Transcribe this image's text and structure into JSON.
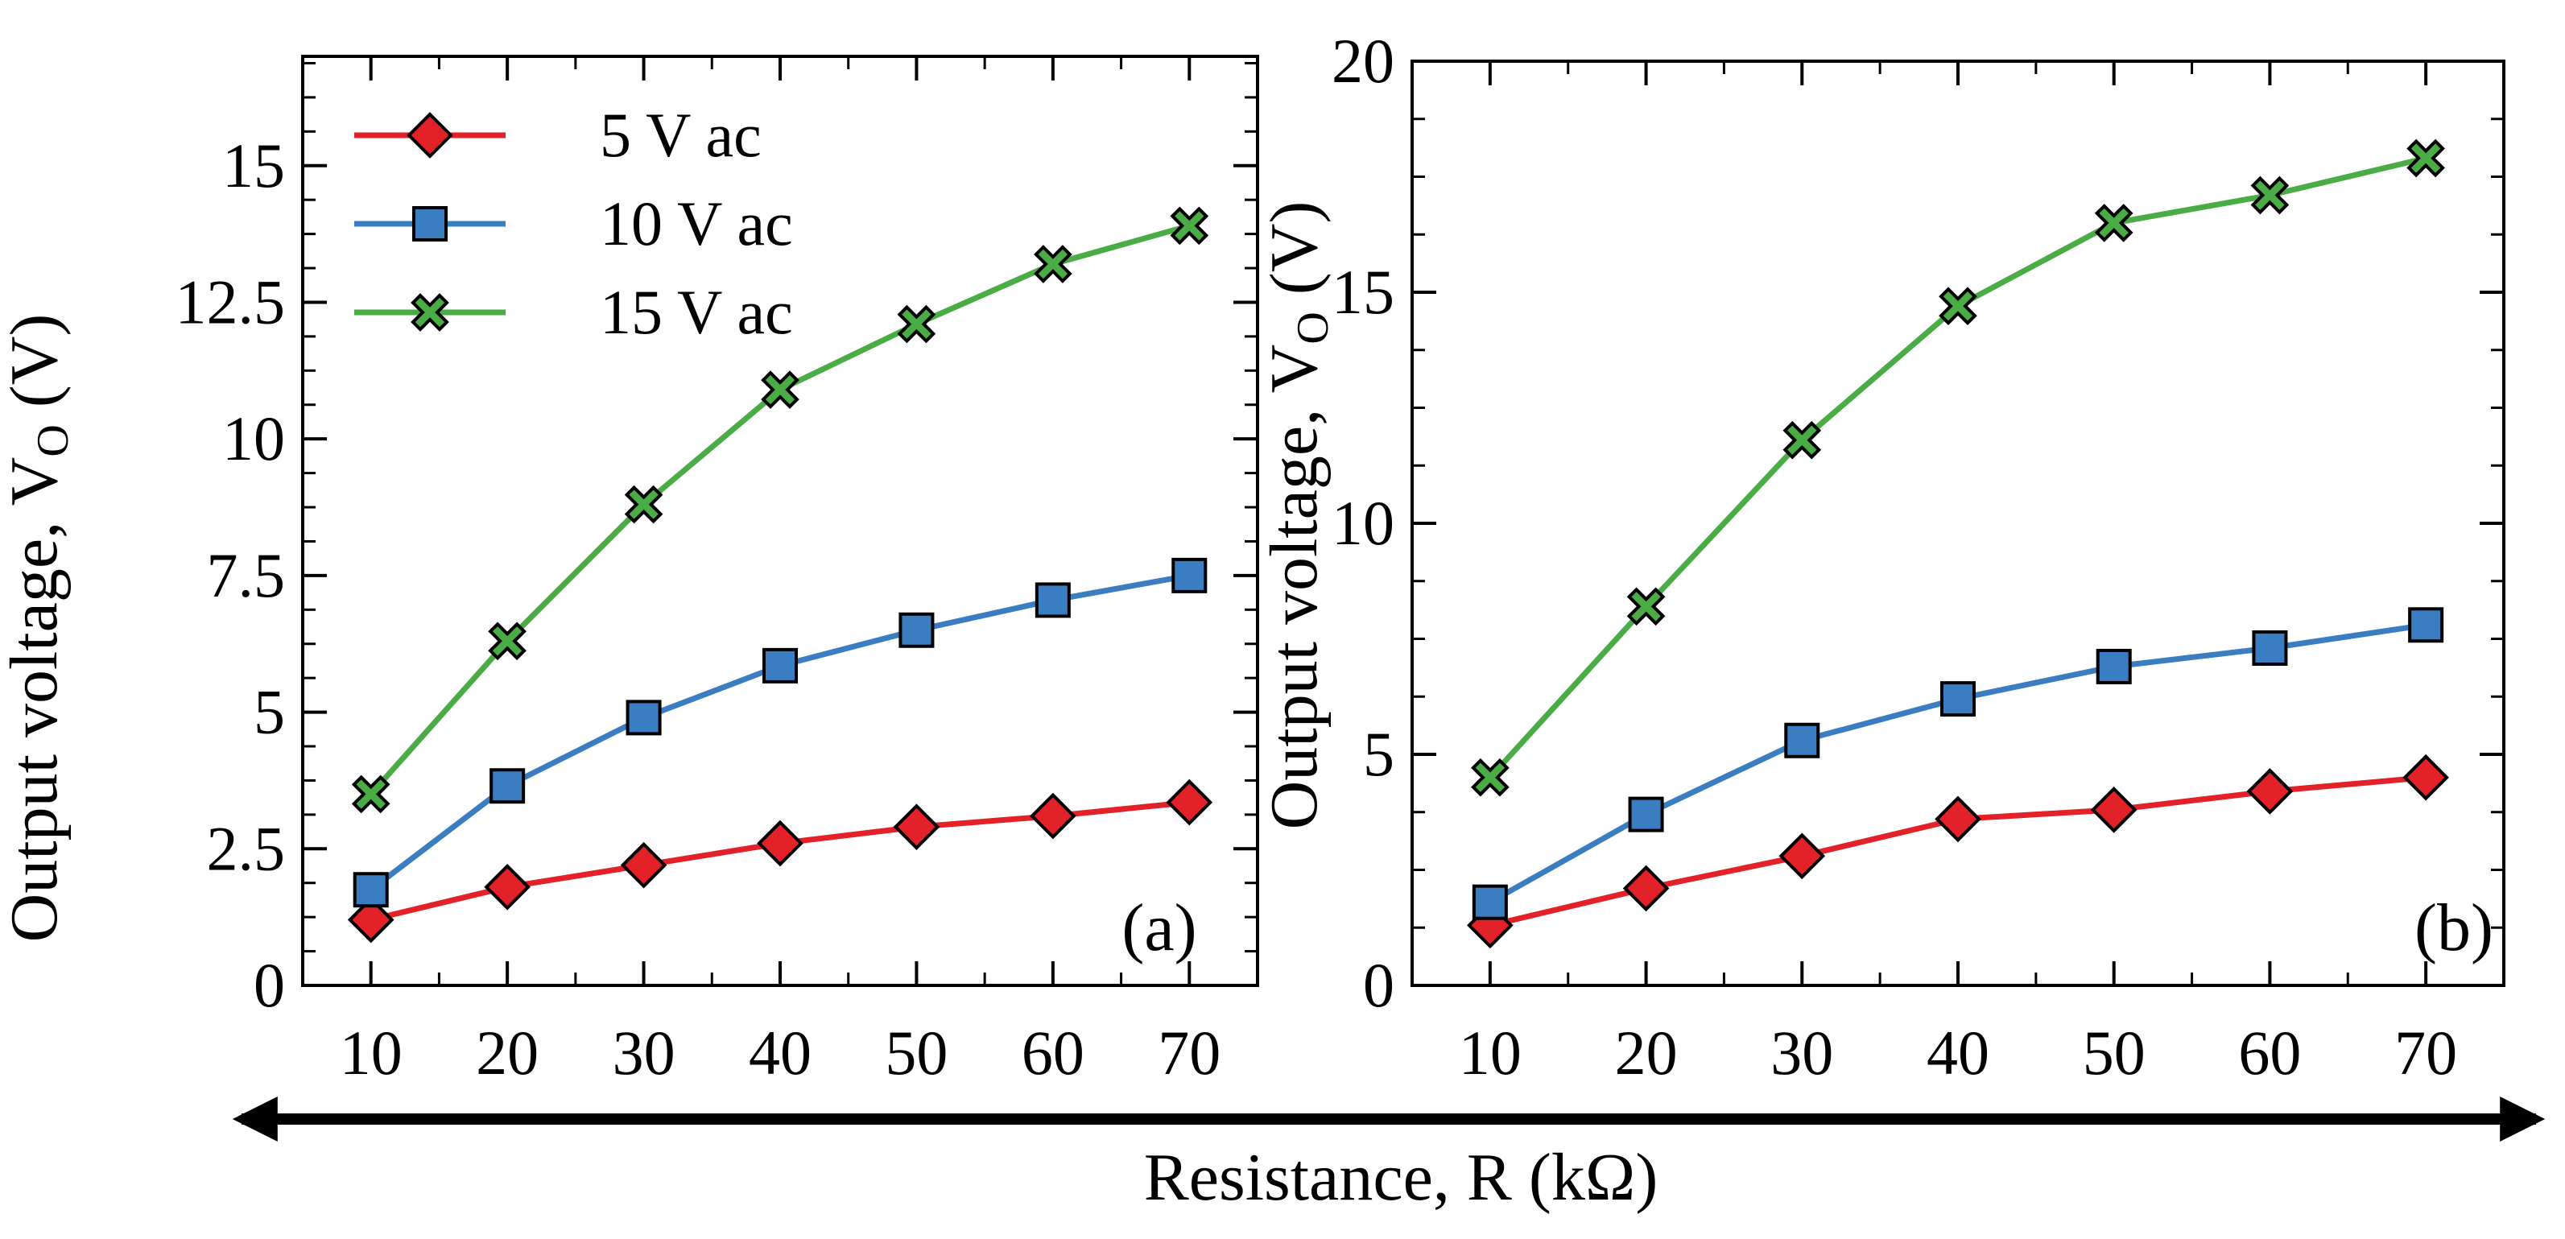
{
  "figure": {
    "x_axis_title": "Resistance, R (kΩ)"
  },
  "colors": {
    "series": [
      "#e32128",
      "#3a7dc0",
      "#4aac45"
    ],
    "axes": "#000000",
    "background": "#ffffff"
  },
  "chart_data": [
    {
      "type": "line",
      "panel_label": "(a)",
      "ylabel_main": "Output voltage,  V",
      "ylabel_sub": "O",
      "ylabel_unit": " (V)",
      "x": [
        10,
        20,
        30,
        40,
        50,
        60,
        70
      ],
      "x_tick_labels": [
        "10",
        "20",
        "30",
        "40",
        "50",
        "60",
        "70"
      ],
      "xlim": [
        5,
        75
      ],
      "ylim": [
        0,
        17
      ],
      "y_ticks": [
        0,
        2.5,
        5,
        7.5,
        10,
        12.5,
        15
      ],
      "y_tick_labels": [
        "0",
        "2.5",
        "5",
        "7.5",
        "10",
        "12.5",
        "15"
      ],
      "legend": "top-left",
      "series": [
        {
          "name": "5 V ac",
          "marker": "diamond",
          "values": [
            1.2,
            1.8,
            2.2,
            2.6,
            2.9,
            3.1,
            3.35
          ]
        },
        {
          "name": "10 V ac",
          "marker": "square",
          "values": [
            1.75,
            3.65,
            4.9,
            5.85,
            6.5,
            7.05,
            7.5
          ]
        },
        {
          "name": "15 V ac",
          "marker": "x",
          "values": [
            3.5,
            6.3,
            8.8,
            10.9,
            12.1,
            13.2,
            13.9
          ]
        }
      ]
    },
    {
      "type": "line",
      "panel_label": "(b)",
      "ylabel_main": "Output voltage,  V",
      "ylabel_sub": "O",
      "ylabel_unit": " (V)",
      "x": [
        10,
        20,
        30,
        40,
        50,
        60,
        70
      ],
      "x_tick_labels": [
        "10",
        "20",
        "30",
        "40",
        "50",
        "60",
        "70"
      ],
      "xlim": [
        5,
        75
      ],
      "ylim": [
        0,
        20
      ],
      "y_ticks": [
        0,
        5,
        10,
        15,
        20
      ],
      "y_tick_labels": [
        "0",
        "5",
        "10",
        "15",
        "20"
      ],
      "legend": "none",
      "series": [
        {
          "name": "5 V ac",
          "marker": "diamond",
          "values": [
            1.3,
            2.1,
            2.8,
            3.6,
            3.8,
            4.2,
            4.5
          ]
        },
        {
          "name": "10 V ac",
          "marker": "square",
          "values": [
            1.8,
            3.7,
            5.3,
            6.2,
            6.9,
            7.3,
            7.8
          ]
        },
        {
          "name": "15 V ac",
          "marker": "x",
          "values": [
            4.5,
            8.2,
            11.8,
            14.7,
            16.5,
            17.1,
            17.9
          ]
        }
      ]
    }
  ]
}
